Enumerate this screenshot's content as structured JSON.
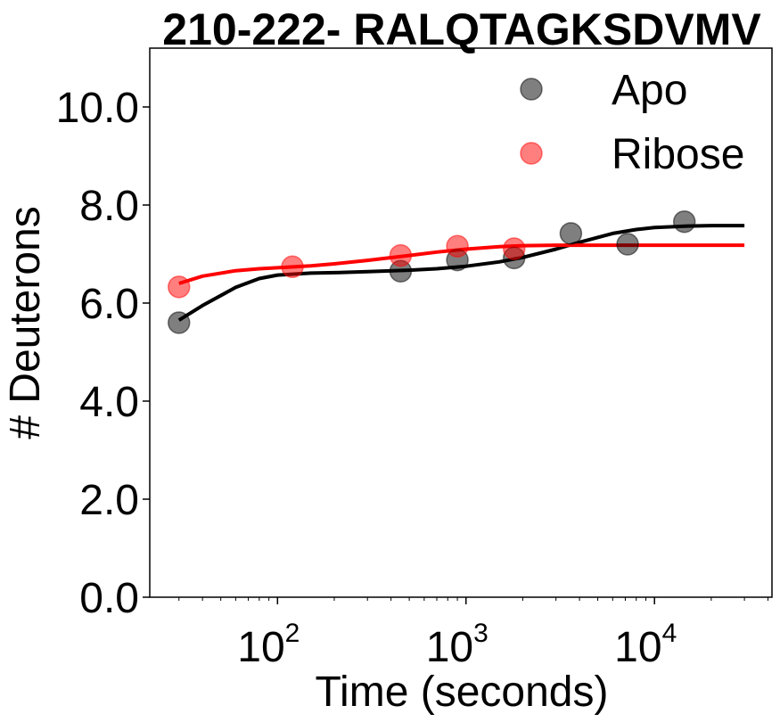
{
  "chart_data": {
    "type": "scatter",
    "title": "210-222- RALQTAGKSDVMV",
    "xlabel": "Time (seconds)",
    "ylabel": "# Deuterons",
    "xscale": "log",
    "xlim": [
      21,
      42000
    ],
    "ylim": [
      0,
      11.2
    ],
    "yticks": [
      0,
      2,
      4,
      6,
      8,
      10
    ],
    "ytick_labels": [
      "0.0",
      "2.0",
      "4.0",
      "6.0",
      "8.0",
      "10.0"
    ],
    "xticks": [
      {
        "value": 100,
        "base": "10",
        "exp": "2"
      },
      {
        "value": 1000,
        "base": "10",
        "exp": "3"
      },
      {
        "value": 10000,
        "base": "10",
        "exp": "4"
      }
    ],
    "legend_position": "top-right",
    "series": [
      {
        "name": "Apo",
        "color": "#000000",
        "x": [
          30,
          450,
          900,
          1800,
          3600,
          7200,
          14400
        ],
        "y": [
          5.6,
          6.65,
          6.88,
          6.92,
          7.42,
          7.2,
          7.66
        ],
        "fit_x": [
          30,
          40,
          60,
          80,
          100,
          150,
          200,
          300,
          500,
          700,
          1000,
          1500,
          2000,
          3000,
          4000,
          6000,
          8000,
          10000,
          15000,
          20000,
          30000
        ],
        "fit_y": [
          5.65,
          5.95,
          6.32,
          6.5,
          6.57,
          6.61,
          6.62,
          6.64,
          6.67,
          6.7,
          6.75,
          6.84,
          6.93,
          7.1,
          7.24,
          7.42,
          7.5,
          7.54,
          7.57,
          7.58,
          7.58
        ]
      },
      {
        "name": "Ribose",
        "color": "#ff0000",
        "x": [
          30,
          120,
          450,
          900,
          1800
        ],
        "y": [
          6.33,
          6.74,
          6.97,
          7.16,
          7.11
        ],
        "fit_x": [
          30,
          40,
          60,
          80,
          100,
          150,
          200,
          300,
          500,
          700,
          1000,
          1500,
          2000,
          3000,
          5000,
          10000,
          20000,
          30000
        ],
        "fit_y": [
          6.4,
          6.55,
          6.66,
          6.7,
          6.72,
          6.76,
          6.8,
          6.87,
          6.97,
          7.04,
          7.1,
          7.15,
          7.17,
          7.18,
          7.18,
          7.18,
          7.18,
          7.18
        ]
      }
    ]
  }
}
